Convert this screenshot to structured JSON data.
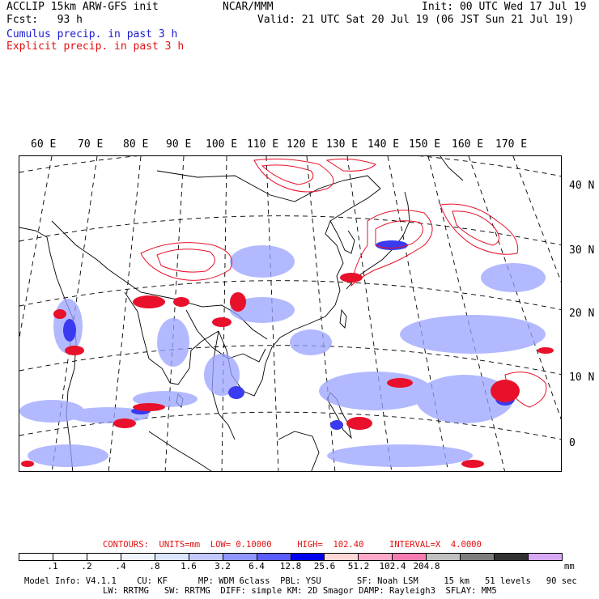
{
  "header": {
    "line1_left": "ACCLIP 15km ARW-GFS init",
    "line1_center": "NCAR/MMM",
    "line1_right": "Init: 00 UTC Wed 17 Jul 19",
    "line2_left": "Fcst:   93 h",
    "line2_right": "Valid: 21 UTC Sat 20 Jul 19 (06 JST Sun 21 Jul 19)",
    "cumulus_label": "Cumulus precip. in past 3 h",
    "explicit_label": "Explicit precip. in past 3 h"
  },
  "map": {
    "longitude_labels": [
      "60 E",
      "70 E",
      "80 E",
      "90 E",
      "100 E",
      "110 E",
      "120 E",
      "130 E",
      "140 E",
      "150 E",
      "160 E",
      "170 E"
    ],
    "latitude_labels": [
      "40 N",
      "30 N",
      "20 N",
      "10 N",
      "0"
    ]
  },
  "contours": {
    "label": "CONTOURS:  UNITS=mm  LOW= 0.10000     HIGH=  102.40     INTERVAL=X  4.0000"
  },
  "legend": {
    "colors": [
      "#ffffff",
      "#ffffff",
      "#ffffff",
      "#f0f4ff",
      "#dbe4ff",
      "#c2c8ff",
      "#9096ff",
      "#5a5cff",
      "#0000f0",
      "#ffd7d7",
      "#ffa8c8",
      "#f47cb0",
      "#c0c0c0",
      "#7d7d7d",
      "#323232",
      "#d7a8f5"
    ],
    "ticks": [
      ".1",
      ".2",
      ".4",
      ".8",
      "1.6",
      "3.2",
      "6.4",
      "12.8",
      "25.6",
      "51.2",
      "102.4",
      "204.8"
    ],
    "unit": "mm"
  },
  "footer": {
    "line1": "Model Info: V4.1.1    CU: KF      MP: WDM 6class  PBL: YSU       SF: Noah LSM     15 km   51 levels   90 sec",
    "line2": "LW: RRTMG   SW: RRTMG  DIFF: simple KM: 2D Smagor DAMP: Rayleigh3  SFLAY: MM5"
  }
}
